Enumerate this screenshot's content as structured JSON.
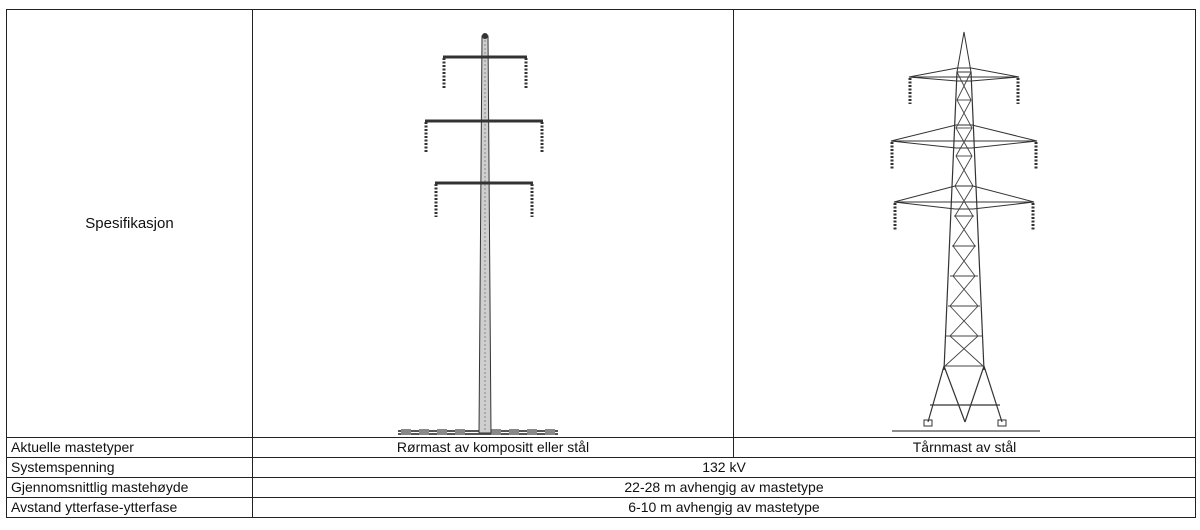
{
  "table": {
    "header_label": "Spesifikasjon",
    "rows": [
      {
        "label": "Aktuelle mastetyper",
        "col1": "Rørmast av kompositt eller stål",
        "col2": "Tårnmast av stål"
      },
      {
        "label": "Systemspenning",
        "value": "132 kV"
      },
      {
        "label": "Gjennomsnittlig mastehøyde",
        "value": "22-28 m avhengig av mastetype"
      },
      {
        "label": "Avstand ytterfase-ytterfase",
        "value": "6-10 m avhengig av mastetype"
      }
    ]
  },
  "images": {
    "pole_icon": "tubular-pole-illustration",
    "tower_icon": "lattice-tower-illustration"
  }
}
